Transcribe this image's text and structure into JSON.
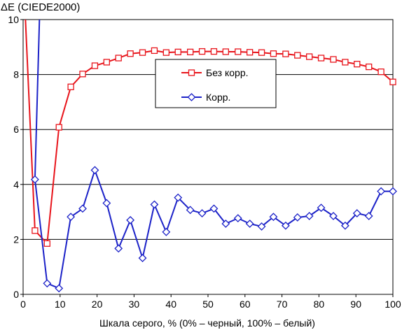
{
  "chart_data": {
    "type": "line",
    "title": "",
    "ylabel": "ΔE (CIEDE2000)",
    "xlabel": "Шкала серого, % (0% – черный, 100% – белый)",
    "xlim": [
      0,
      100
    ],
    "ylim": [
      0,
      10
    ],
    "xticks": [
      0,
      10,
      20,
      30,
      40,
      50,
      60,
      70,
      80,
      90,
      100
    ],
    "yticks": [
      0,
      2,
      4,
      6,
      8,
      10
    ],
    "grid": "horizontal",
    "legend_position": "upper-right inside plot",
    "x": [
      3.2,
      6.5,
      9.7,
      12.9,
      16.1,
      19.4,
      22.6,
      25.8,
      29.0,
      32.3,
      35.5,
      38.7,
      41.9,
      45.2,
      48.4,
      51.6,
      54.8,
      58.1,
      61.3,
      64.5,
      67.7,
      71.0,
      74.2,
      77.4,
      80.6,
      83.9,
      87.1,
      90.3,
      93.5,
      96.8,
      100.0
    ],
    "series": [
      {
        "name": "Без корр.",
        "color": "#e8141b",
        "marker": "square",
        "start": [
          0.5,
          10.4
        ],
        "values": [
          2.32,
          1.85,
          6.08,
          7.55,
          8.02,
          8.32,
          8.45,
          8.6,
          8.76,
          8.8,
          8.87,
          8.8,
          8.82,
          8.82,
          8.84,
          8.84,
          8.83,
          8.83,
          8.81,
          8.8,
          8.76,
          8.75,
          8.7,
          8.65,
          8.6,
          8.55,
          8.45,
          8.38,
          8.28,
          8.1,
          7.73
        ]
      },
      {
        "name": "Корр.",
        "color": "#1c22c8",
        "marker": "diamond",
        "start": [
          4.5,
          10.4
        ],
        "values": [
          4.18,
          0.4,
          0.22,
          2.82,
          3.12,
          4.52,
          3.32,
          1.67,
          2.7,
          1.32,
          3.27,
          2.27,
          3.52,
          3.07,
          2.95,
          3.12,
          2.57,
          2.77,
          2.57,
          2.47,
          2.82,
          2.5,
          2.8,
          2.85,
          3.15,
          2.85,
          2.5,
          2.95,
          2.85,
          3.75,
          3.75
        ]
      }
    ]
  }
}
